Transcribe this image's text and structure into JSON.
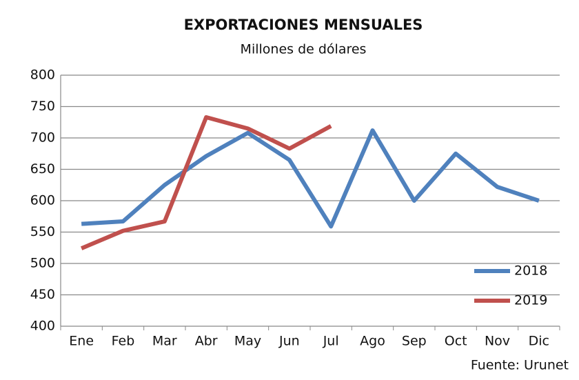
{
  "chart_data": {
    "type": "line",
    "title": "EXPORTACIONES MENSUALES",
    "subtitle": "Millones de dólares",
    "source": "Fuente: Urunet",
    "categories": [
      "Ene",
      "Feb",
      "Mar",
      "Abr",
      "May",
      "Jun",
      "Jul",
      "Ago",
      "Sep",
      "Oct",
      "Nov",
      "Dic"
    ],
    "series": [
      {
        "name": "2018",
        "color": "#4f81bd",
        "values": [
          563,
          567,
          625,
          671,
          708,
          665,
          559,
          712,
          600,
          675,
          622,
          600
        ]
      },
      {
        "name": "2019",
        "color": "#c0504d",
        "values": [
          524,
          552,
          567,
          733,
          715,
          683,
          719,
          null,
          null,
          null,
          null,
          null
        ]
      }
    ],
    "ylim": [
      400,
      800
    ],
    "yticks": [
      400,
      450,
      500,
      550,
      600,
      650,
      700,
      750,
      800
    ],
    "grid": true,
    "legend_position": "lower right"
  }
}
